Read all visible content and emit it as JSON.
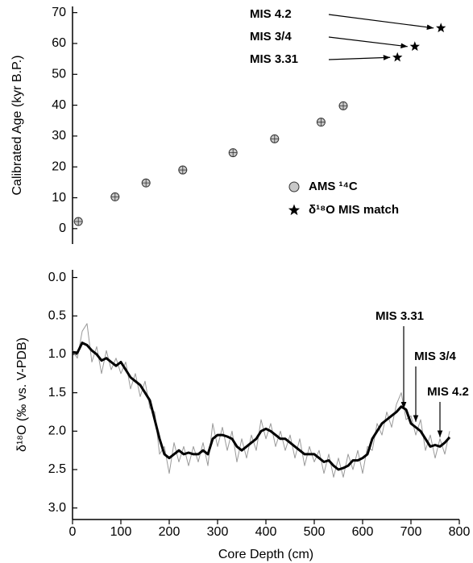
{
  "chart_data": [
    {
      "type": "scatter",
      "ylabel": "Calibrated Age (kyr B.P.)",
      "xlim": [
        0,
        800
      ],
      "ylim": [
        -5,
        72
      ],
      "yticks": [
        0,
        10,
        20,
        30,
        40,
        50,
        60,
        70
      ],
      "legend": "lower right",
      "series": [
        {
          "name": "AMS ¹⁴C",
          "marker": "circle",
          "color": "#c8c8c8",
          "x": [
            12,
            88,
            152,
            228,
            332,
            418,
            514,
            560
          ],
          "values": [
            2.3,
            10.3,
            14.8,
            19,
            24.6,
            29.1,
            34.5,
            39.8
          ]
        },
        {
          "name": "δ¹⁸O MIS match",
          "marker": "star",
          "color": "#000000",
          "x": [
            672,
            708,
            762
          ],
          "values": [
            55.5,
            59,
            65
          ]
        }
      ],
      "annotations": [
        "MIS 4.2",
        "MIS 3/4",
        "MIS 3.31"
      ]
    },
    {
      "type": "line",
      "ylabel": "δ¹⁸O (‰ vs. V-PDB)",
      "xlabel": "Core Depth (cm)",
      "xlim": [
        0,
        800
      ],
      "xticks": [
        0,
        100,
        200,
        300,
        400,
        500,
        600,
        700,
        800
      ],
      "ylim": [
        -0.1,
        3.15
      ],
      "yinverted": true,
      "yticks": [
        {
          "value": 0,
          "label": "0.0"
        },
        0.5,
        {
          "value": 1,
          "label": "1.0"
        },
        1.5,
        {
          "value": 2,
          "label": "2.0"
        },
        2.5,
        {
          "value": 3,
          "label": "3.0"
        }
      ],
      "x": [
        0,
        10,
        20,
        30,
        40,
        50,
        60,
        70,
        80,
        90,
        100,
        110,
        120,
        130,
        140,
        150,
        160,
        170,
        180,
        190,
        200,
        210,
        220,
        230,
        240,
        250,
        260,
        270,
        280,
        290,
        300,
        310,
        320,
        330,
        340,
        350,
        360,
        370,
        380,
        390,
        400,
        410,
        420,
        430,
        440,
        450,
        460,
        470,
        480,
        490,
        500,
        510,
        520,
        530,
        540,
        550,
        560,
        570,
        580,
        590,
        600,
        610,
        620,
        630,
        640,
        650,
        660,
        670,
        680,
        690,
        700,
        710,
        720,
        730,
        740,
        750,
        760,
        770,
        780
      ],
      "series": [
        {
          "color": "#999999",
          "width": 1,
          "values": [
            0.95,
            1.05,
            0.7,
            0.6,
            1.1,
            0.9,
            1.25,
            0.95,
            1.2,
            1.05,
            1.25,
            1.1,
            1.45,
            1.25,
            1.55,
            1.35,
            1.7,
            1.75,
            2.3,
            2.2,
            2.55,
            2.15,
            2.4,
            2.2,
            2.45,
            2.2,
            2.4,
            2.15,
            2.45,
            1.9,
            2.2,
            1.95,
            2.25,
            2.0,
            2.4,
            2.1,
            2.35,
            2.05,
            2.25,
            1.85,
            2.1,
            1.9,
            2.2,
            2.0,
            2.25,
            2.05,
            2.35,
            2.1,
            2.45,
            2.2,
            2.4,
            2.25,
            2.55,
            2.3,
            2.6,
            2.35,
            2.6,
            2.3,
            2.5,
            2.25,
            2.55,
            2.2,
            2.25,
            1.9,
            2.05,
            1.75,
            1.95,
            1.65,
            1.5,
            1.85,
            1.8,
            2.05,
            1.85,
            2.25,
            2.05,
            2.35,
            2.1,
            2.3,
            2.0
          ]
        },
        {
          "color": "#000000",
          "width": 3,
          "values": [
            0.97,
            0.98,
            0.85,
            0.88,
            0.95,
            1.0,
            1.08,
            1.05,
            1.1,
            1.15,
            1.1,
            1.2,
            1.3,
            1.35,
            1.4,
            1.5,
            1.6,
            1.85,
            2.1,
            2.3,
            2.35,
            2.3,
            2.25,
            2.3,
            2.28,
            2.3,
            2.3,
            2.25,
            2.3,
            2.1,
            2.05,
            2.05,
            2.07,
            2.1,
            2.2,
            2.25,
            2.2,
            2.15,
            2.1,
            2.0,
            1.97,
            2.0,
            2.05,
            2.1,
            2.1,
            2.15,
            2.2,
            2.25,
            2.3,
            2.3,
            2.3,
            2.35,
            2.4,
            2.38,
            2.45,
            2.5,
            2.48,
            2.45,
            2.38,
            2.38,
            2.35,
            2.3,
            2.1,
            2.0,
            1.9,
            1.85,
            1.8,
            1.75,
            1.68,
            1.72,
            1.9,
            1.95,
            2.0,
            2.1,
            2.2,
            2.18,
            2.2,
            2.15,
            2.08
          ]
        }
      ],
      "annotations": [
        "MIS 3.31",
        "MIS 3/4",
        "MIS 4.2"
      ]
    }
  ]
}
